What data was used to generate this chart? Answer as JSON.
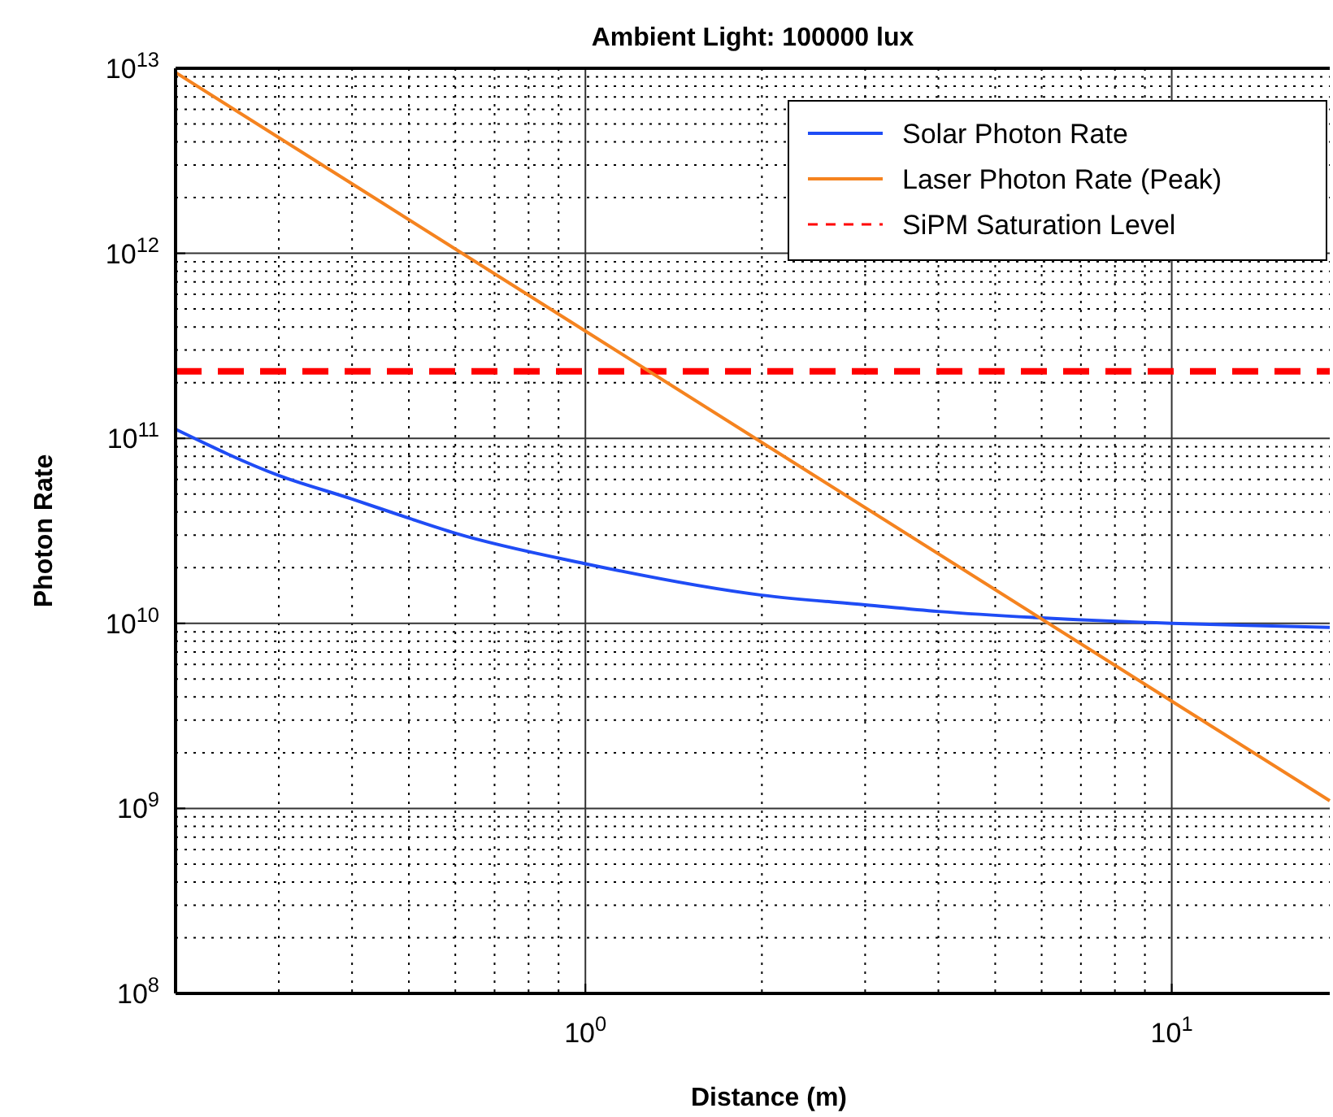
{
  "chart_data": {
    "type": "line",
    "title": "Ambient Light: 100000 lux",
    "xlabel": "Distance (m)",
    "ylabel": "Photon Rate",
    "log": "xy",
    "grid": true,
    "legend": "top right",
    "line_style": "solid",
    "marker": "none",
    "xlim": [
      0.2,
      18.6
    ],
    "xticks": [
      {
        "value": 1,
        "label": "10$^{0}$"
      },
      {
        "value": 10,
        "label": "10$^{1}$"
      }
    ],
    "ylim": [
      100000000.0,
      10000000000000.0
    ],
    "yticks": [
      {
        "value": 100000000.0,
        "label": "10$^{8}$"
      },
      {
        "value": 1000000000.0,
        "label": "10$^{9}$"
      },
      {
        "value": 10000000000.0,
        "label": "10$^{10}$"
      },
      {
        "value": 100000000000.0,
        "label": "10$^{11}$"
      },
      {
        "value": 1000000000000.0,
        "label": "10$^{12}$"
      },
      {
        "value": 10000000000000.0,
        "label": "10$^{13}$"
      }
    ],
    "series": [
      {
        "name": "Solar Photon Rate",
        "color": "#1f4cf5",
        "x": [
          0.2,
          0.3,
          0.4,
          0.5,
          0.6,
          1,
          2,
          3,
          4,
          6,
          10,
          18.6
        ],
        "values": [
          112000000000.0,
          63000000000.0,
          47000000000.0,
          37000000000.0,
          30700000000.0,
          21000000000.0,
          14200000000.0,
          12600000000.0,
          11600000000.0,
          10700000000.0,
          10000000000.0,
          9500000000.0
        ]
      },
      {
        "name": "Laser Photon Rate (Peak)",
        "color": "#f5831f",
        "x": [
          0.2,
          1,
          10,
          18.6
        ],
        "values": [
          9500000000000.0,
          380000000000.0,
          3800000000.0,
          1100000000.0
        ]
      }
    ],
    "ref_lines": [
      {
        "axis": "y",
        "value": 230000000000.0,
        "label": "SiPM Saturation Level",
        "color": "#ff0000",
        "line_style": "dashed"
      }
    ]
  }
}
